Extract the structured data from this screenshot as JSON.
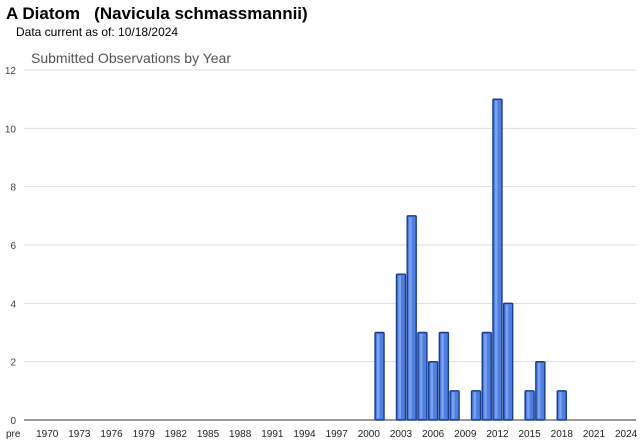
{
  "header": {
    "title": "A Diatom   (Navicula schmassmannii)",
    "data_current": "Data current as of: 10/18/2024"
  },
  "chart_data": {
    "type": "bar",
    "title": "Submitted Observations by Year",
    "xlabel": "",
    "ylabel": "",
    "ylim": [
      0,
      12
    ],
    "yticks": [
      0,
      2,
      4,
      6,
      8,
      10,
      12
    ],
    "grid": true,
    "legend": "none",
    "bar_color": "#4f7fe0",
    "bar_edge_color": "#1a3c8c",
    "categories": [
      "pre",
      "1970",
      "1971",
      "1972",
      "1973",
      "1974",
      "1975",
      "1976",
      "1977",
      "1978",
      "1979",
      "1980",
      "1981",
      "1982",
      "1983",
      "1984",
      "1985",
      "1986",
      "1987",
      "1988",
      "1989",
      "1990",
      "1991",
      "1992",
      "1993",
      "1994",
      "1995",
      "1996",
      "1997",
      "1998",
      "1999",
      "2000",
      "2001",
      "2002",
      "2003",
      "2004",
      "2005",
      "2006",
      "2007",
      "2008",
      "2009",
      "2010",
      "2011",
      "2012",
      "2013",
      "2014",
      "2015",
      "2016",
      "2017",
      "2018",
      "2019",
      "2020",
      "2021",
      "2022",
      "2023",
      "2024"
    ],
    "values": [
      0,
      0,
      0,
      0,
      0,
      0,
      0,
      0,
      0,
      0,
      0,
      0,
      0,
      0,
      0,
      0,
      0,
      0,
      0,
      0,
      0,
      0,
      0,
      0,
      0,
      0,
      0,
      0,
      0,
      0,
      0,
      0,
      3,
      0,
      5,
      7,
      3,
      2,
      3,
      1,
      0,
      1,
      3,
      11,
      4,
      0,
      1,
      2,
      0,
      1,
      0,
      0,
      0,
      0,
      0,
      0
    ],
    "tick_labels": [
      "pre",
      "1970",
      "1973",
      "1976",
      "1979",
      "1982",
      "1985",
      "1988",
      "1991",
      "1994",
      "1997",
      "2000",
      "2003",
      "2006",
      "2009",
      "2012",
      "2015",
      "2018",
      "2021",
      "2024"
    ]
  }
}
